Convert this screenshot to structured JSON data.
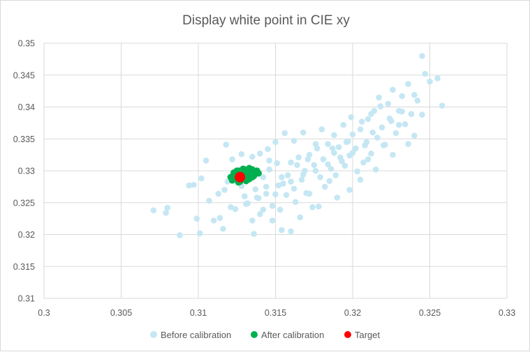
{
  "chart_data": {
    "type": "scatter",
    "title": "Display white point in CIE xy",
    "xlabel": "",
    "ylabel": "",
    "xlim": [
      0.3,
      0.33
    ],
    "ylim": [
      0.31,
      0.35
    ],
    "x_ticks": [
      "0.3",
      "0.305",
      "0.31",
      "0.315",
      "0.32",
      "0.325",
      "0.33"
    ],
    "y_ticks": [
      "0.31",
      "0.315",
      "0.32",
      "0.325",
      "0.33",
      "0.335",
      "0.34",
      "0.345",
      "0.35"
    ],
    "grid": true,
    "legend_position": "bottom",
    "series": [
      {
        "name": "Before calibration",
        "color": "#c5e7f3",
        "points": [
          [
            0.3071,
            0.3238
          ],
          [
            0.308,
            0.3242
          ],
          [
            0.3079,
            0.3234
          ],
          [
            0.3088,
            0.3199
          ],
          [
            0.3094,
            0.3277
          ],
          [
            0.3097,
            0.3278
          ],
          [
            0.3099,
            0.3225
          ],
          [
            0.3101,
            0.3202
          ],
          [
            0.3102,
            0.3288
          ],
          [
            0.3105,
            0.3316
          ],
          [
            0.3107,
            0.3253
          ],
          [
            0.311,
            0.3222
          ],
          [
            0.3113,
            0.3264
          ],
          [
            0.3114,
            0.3226
          ],
          [
            0.3116,
            0.3209
          ],
          [
            0.3117,
            0.327
          ],
          [
            0.3119,
            0.3283
          ],
          [
            0.3121,
            0.3243
          ],
          [
            0.3124,
            0.324
          ],
          [
            0.3126,
            0.329
          ],
          [
            0.3128,
            0.3276
          ],
          [
            0.313,
            0.326
          ],
          [
            0.3131,
            0.3248
          ],
          [
            0.3133,
            0.3303
          ],
          [
            0.3135,
            0.3222
          ],
          [
            0.3137,
            0.3271
          ],
          [
            0.3139,
            0.3257
          ],
          [
            0.314,
            0.3232
          ],
          [
            0.3142,
            0.329
          ],
          [
            0.3144,
            0.3275
          ],
          [
            0.3146,
            0.3302
          ],
          [
            0.3148,
            0.3245
          ],
          [
            0.315,
            0.3263
          ],
          [
            0.3151,
            0.3312
          ],
          [
            0.3153,
            0.3239
          ],
          [
            0.3155,
            0.328
          ],
          [
            0.3157,
            0.3262
          ],
          [
            0.3158,
            0.3293
          ],
          [
            0.316,
            0.3313
          ],
          [
            0.3162,
            0.3272
          ],
          [
            0.3163,
            0.3251
          ],
          [
            0.3165,
            0.3321
          ],
          [
            0.3167,
            0.3286
          ],
          [
            0.3169,
            0.33
          ],
          [
            0.317,
            0.3265
          ],
          [
            0.3172,
            0.3325
          ],
          [
            0.3174,
            0.3243
          ],
          [
            0.3175,
            0.3309
          ],
          [
            0.3177,
            0.3335
          ],
          [
            0.3179,
            0.329
          ],
          [
            0.3181,
            0.3318
          ],
          [
            0.3182,
            0.3275
          ],
          [
            0.3184,
            0.3342
          ],
          [
            0.3186,
            0.3303
          ],
          [
            0.3188,
            0.3328
          ],
          [
            0.3189,
            0.3293
          ],
          [
            0.3191,
            0.3337
          ],
          [
            0.3193,
            0.3315
          ],
          [
            0.3195,
            0.3308
          ],
          [
            0.3196,
            0.3345
          ],
          [
            0.3198,
            0.3324
          ],
          [
            0.32,
            0.3357
          ],
          [
            0.3202,
            0.3335
          ],
          [
            0.3203,
            0.3299
          ],
          [
            0.3205,
            0.3365
          ],
          [
            0.3207,
            0.3313
          ],
          [
            0.3209,
            0.3345
          ],
          [
            0.321,
            0.3381
          ],
          [
            0.3212,
            0.3327
          ],
          [
            0.3214,
            0.3394
          ],
          [
            0.3216,
            0.3352
          ],
          [
            0.3217,
            0.3415
          ],
          [
            0.3219,
            0.3368
          ],
          [
            0.3221,
            0.3341
          ],
          [
            0.3223,
            0.3405
          ],
          [
            0.3224,
            0.3382
          ],
          [
            0.3226,
            0.3427
          ],
          [
            0.3228,
            0.3359
          ],
          [
            0.323,
            0.3394
          ],
          [
            0.3232,
            0.3417
          ],
          [
            0.3234,
            0.3373
          ],
          [
            0.3236,
            0.3436
          ],
          [
            0.3238,
            0.3389
          ],
          [
            0.324,
            0.3419
          ],
          [
            0.3242,
            0.341
          ],
          [
            0.3245,
            0.348
          ],
          [
            0.3247,
            0.3452
          ],
          [
            0.325,
            0.344
          ],
          [
            0.3255,
            0.3445
          ],
          [
            0.3258,
            0.3402
          ],
          [
            0.3245,
            0.3388
          ],
          [
            0.324,
            0.3355
          ],
          [
            0.3236,
            0.3342
          ],
          [
            0.323,
            0.3372
          ],
          [
            0.3226,
            0.3325
          ],
          [
            0.322,
            0.334
          ],
          [
            0.3215,
            0.3302
          ],
          [
            0.321,
            0.3318
          ],
          [
            0.3205,
            0.3286
          ],
          [
            0.3198,
            0.327
          ],
          [
            0.319,
            0.3258
          ],
          [
            0.3185,
            0.3284
          ],
          [
            0.3178,
            0.3244
          ],
          [
            0.3172,
            0.3264
          ],
          [
            0.3166,
            0.3227
          ],
          [
            0.316,
            0.3205
          ],
          [
            0.3154,
            0.3207
          ],
          [
            0.3148,
            0.3222
          ],
          [
            0.3142,
            0.3239
          ],
          [
            0.3136,
            0.3201
          ],
          [
            0.3176,
            0.3342
          ],
          [
            0.3168,
            0.336
          ],
          [
            0.3162,
            0.3347
          ],
          [
            0.3156,
            0.3359
          ],
          [
            0.315,
            0.3345
          ],
          [
            0.3145,
            0.3334
          ],
          [
            0.314,
            0.3327
          ],
          [
            0.3135,
            0.3322
          ],
          [
            0.3146,
            0.3316
          ],
          [
            0.318,
            0.3365
          ],
          [
            0.3188,
            0.3356
          ],
          [
            0.3194,
            0.3372
          ],
          [
            0.3199,
            0.3384
          ],
          [
            0.3206,
            0.3377
          ],
          [
            0.3212,
            0.3389
          ],
          [
            0.3218,
            0.3401
          ],
          [
            0.3208,
            0.334
          ],
          [
            0.32,
            0.3328
          ],
          [
            0.3192,
            0.3321
          ],
          [
            0.3184,
            0.331
          ],
          [
            0.3176,
            0.33
          ],
          [
            0.3168,
            0.3294
          ],
          [
            0.316,
            0.3283
          ],
          [
            0.3152,
            0.3277
          ],
          [
            0.3144,
            0.3264
          ],
          [
            0.3138,
            0.3258
          ],
          [
            0.3132,
            0.3249
          ],
          [
            0.3122,
            0.3318
          ],
          [
            0.3118,
            0.3341
          ],
          [
            0.3128,
            0.3326
          ],
          [
            0.3154,
            0.329
          ],
          [
            0.3164,
            0.3309
          ],
          [
            0.3171,
            0.3318
          ],
          [
            0.3187,
            0.3335
          ],
          [
            0.3197,
            0.3346
          ],
          [
            0.3213,
            0.336
          ],
          [
            0.3225,
            0.3378
          ],
          [
            0.3232,
            0.3393
          ]
        ]
      },
      {
        "name": "After calibration",
        "color": "#00b050",
        "points": [
          [
            0.3121,
            0.329
          ],
          [
            0.3122,
            0.3285
          ],
          [
            0.3123,
            0.3297
          ],
          [
            0.3124,
            0.3288
          ],
          [
            0.3125,
            0.3294
          ],
          [
            0.3126,
            0.3282
          ],
          [
            0.3126,
            0.33
          ],
          [
            0.3127,
            0.3292
          ],
          [
            0.3128,
            0.3297
          ],
          [
            0.3128,
            0.3286
          ],
          [
            0.3129,
            0.329
          ],
          [
            0.313,
            0.3302
          ],
          [
            0.313,
            0.3295
          ],
          [
            0.3131,
            0.3289
          ],
          [
            0.3132,
            0.3299
          ],
          [
            0.3132,
            0.3293
          ],
          [
            0.3133,
            0.3287
          ],
          [
            0.3134,
            0.33
          ],
          [
            0.3134,
            0.3295
          ],
          [
            0.3135,
            0.3302
          ],
          [
            0.3136,
            0.3292
          ],
          [
            0.3137,
            0.3297
          ],
          [
            0.3138,
            0.33
          ],
          [
            0.3127,
            0.3283
          ],
          [
            0.3131,
            0.3284
          ],
          [
            0.3135,
            0.329
          ],
          [
            0.3139,
            0.3296
          ],
          [
            0.3125,
            0.33
          ],
          [
            0.3129,
            0.3303
          ],
          [
            0.3133,
            0.3304
          ]
        ]
      },
      {
        "name": "Target",
        "color": "#ff0000",
        "points": [
          [
            0.3127,
            0.329
          ]
        ]
      }
    ]
  }
}
